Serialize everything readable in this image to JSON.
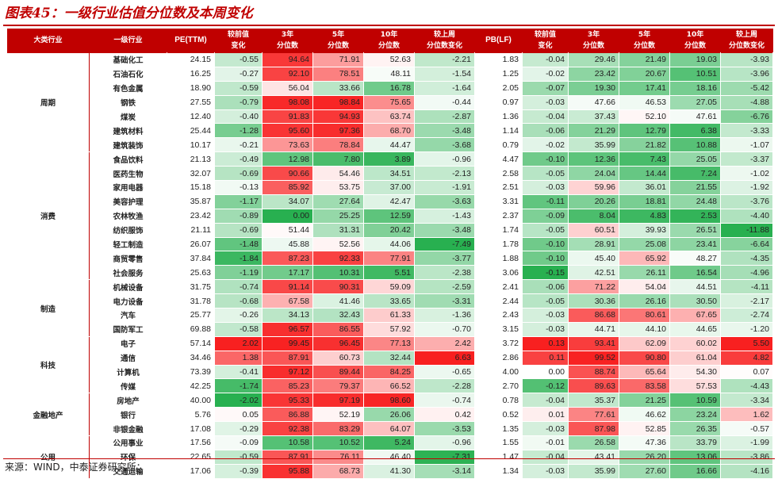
{
  "title": "图表45：一级行业估值分位数及本周变化",
  "source": "来源：WIND，中泰证券研究所；",
  "headers": [
    "大类行业",
    "一级行业",
    "PE(TTM)",
    "较前值\n变化",
    "3年\n分位数",
    "5年\n分位数",
    "10年\n分位数",
    "较上周\n分位数变化",
    "PB(LF)",
    "较前值\n变化",
    "3年\n分位数",
    "5年\n分位数",
    "10年\n分位数",
    "较上周\n分位数变化"
  ],
  "colors": {
    "accent": "#c00000"
  },
  "groups": [
    {
      "name": "周期",
      "rows": [
        {
          "industry": "基础化工",
          "values": [
            "24.15",
            "-0.55",
            "94.64",
            "71.91",
            "52.63",
            "-2.21",
            "1.83",
            "-0.04",
            "29.46",
            "21.49",
            "19.03",
            "-3.93"
          ]
        },
        {
          "industry": "石油石化",
          "values": [
            "16.25",
            "-0.27",
            "92.10",
            "78.51",
            "48.11",
            "-1.54",
            "1.25",
            "-0.02",
            "23.42",
            "20.67",
            "10.51",
            "-3.96"
          ]
        },
        {
          "industry": "有色金属",
          "values": [
            "18.90",
            "-0.59",
            "56.04",
            "33.66",
            "16.78",
            "-1.64",
            "2.05",
            "-0.07",
            "19.30",
            "17.41",
            "18.16",
            "-5.42"
          ]
        },
        {
          "industry": "钢铁",
          "values": [
            "27.55",
            "-0.79",
            "98.08",
            "98.84",
            "75.65",
            "-0.44",
            "0.97",
            "-0.03",
            "47.66",
            "46.53",
            "27.05",
            "-4.88"
          ]
        },
        {
          "industry": "煤炭",
          "values": [
            "12.40",
            "-0.40",
            "91.83",
            "94.93",
            "63.74",
            "-2.87",
            "1.36",
            "-0.04",
            "37.43",
            "52.10",
            "47.61",
            "-6.76"
          ]
        },
        {
          "industry": "建筑材料",
          "values": [
            "25.44",
            "-1.28",
            "95.60",
            "97.36",
            "68.70",
            "-3.48",
            "1.14",
            "-0.06",
            "21.29",
            "12.79",
            "6.38",
            "-3.33"
          ]
        },
        {
          "industry": "建筑装饰",
          "values": [
            "10.17",
            "-0.21",
            "73.63",
            "78.84",
            "44.47",
            "-3.68",
            "0.79",
            "-0.02",
            "35.99",
            "21.82",
            "10.88",
            "-1.07"
          ]
        }
      ]
    },
    {
      "name": "消费",
      "rows": [
        {
          "industry": "食品饮料",
          "values": [
            "21.13",
            "-0.49",
            "12.98",
            "7.80",
            "3.89",
            "-0.96",
            "4.47",
            "-0.10",
            "12.36",
            "7.43",
            "25.05",
            "-3.37"
          ]
        },
        {
          "industry": "医药生物",
          "values": [
            "32.07",
            "-0.69",
            "90.66",
            "54.46",
            "34.51",
            "-2.13",
            "2.58",
            "-0.05",
            "24.04",
            "14.44",
            "7.24",
            "-1.02"
          ]
        },
        {
          "industry": "家用电器",
          "values": [
            "15.18",
            "-0.13",
            "85.92",
            "53.75",
            "37.00",
            "-1.91",
            "2.51",
            "-0.03",
            "59.96",
            "36.01",
            "21.55",
            "-1.92"
          ]
        },
        {
          "industry": "美容护理",
          "values": [
            "35.87",
            "-1.17",
            "34.07",
            "27.64",
            "42.47",
            "-3.63",
            "3.31",
            "-0.11",
            "20.26",
            "18.81",
            "24.48",
            "-3.76"
          ]
        },
        {
          "industry": "农林牧渔",
          "values": [
            "23.42",
            "-0.89",
            "0.00",
            "25.25",
            "12.59",
            "-1.43",
            "2.37",
            "-0.09",
            "8.04",
            "4.83",
            "2.53",
            "-4.40"
          ]
        },
        {
          "industry": "纺织服饰",
          "values": [
            "21.11",
            "-0.69",
            "51.44",
            "31.31",
            "20.42",
            "-3.48",
            "1.74",
            "-0.05",
            "60.51",
            "39.93",
            "26.51",
            "-11.88"
          ]
        },
        {
          "industry": "轻工制造",
          "values": [
            "26.07",
            "-1.48",
            "45.88",
            "52.56",
            "44.06",
            "-7.49",
            "1.78",
            "-0.10",
            "28.91",
            "25.08",
            "23.41",
            "-6.64"
          ]
        },
        {
          "industry": "商贸零售",
          "values": [
            "37.84",
            "-1.84",
            "87.23",
            "92.33",
            "77.91",
            "-3.77",
            "1.88",
            "-0.10",
            "45.40",
            "65.92",
            "48.27",
            "-4.35"
          ]
        },
        {
          "industry": "社会服务",
          "values": [
            "25.63",
            "-1.19",
            "17.17",
            "10.31",
            "5.51",
            "-2.38",
            "3.06",
            "-0.15",
            "42.51",
            "26.11",
            "16.54",
            "-4.96"
          ]
        }
      ]
    },
    {
      "name": "制造",
      "rows": [
        {
          "industry": "机械设备",
          "values": [
            "31.75",
            "-0.74",
            "91.14",
            "90.31",
            "59.09",
            "-2.59",
            "2.41",
            "-0.06",
            "71.22",
            "54.04",
            "44.51",
            "-4.11"
          ]
        },
        {
          "industry": "电力设备",
          "values": [
            "31.78",
            "-0.68",
            "67.58",
            "41.46",
            "33.65",
            "-3.31",
            "2.44",
            "-0.05",
            "30.36",
            "26.16",
            "30.50",
            "-2.17"
          ]
        },
        {
          "industry": "汽车",
          "values": [
            "25.77",
            "-0.26",
            "34.13",
            "32.43",
            "61.33",
            "-1.36",
            "2.43",
            "-0.03",
            "86.68",
            "80.61",
            "67.65",
            "-2.74"
          ]
        },
        {
          "industry": "国防军工",
          "values": [
            "69.88",
            "-0.58",
            "96.57",
            "86.55",
            "57.92",
            "-0.70",
            "3.15",
            "-0.03",
            "44.71",
            "44.10",
            "44.65",
            "-1.20"
          ]
        }
      ]
    },
    {
      "name": "科技",
      "rows": [
        {
          "industry": "电子",
          "values": [
            "57.14",
            "2.02",
            "99.45",
            "96.45",
            "77.13",
            "2.42",
            "3.72",
            "0.13",
            "93.41",
            "62.09",
            "60.02",
            "5.50"
          ]
        },
        {
          "industry": "通信",
          "values": [
            "34.46",
            "1.38",
            "87.91",
            "60.73",
            "32.44",
            "6.63",
            "2.86",
            "0.11",
            "99.52",
            "90.80",
            "61.04",
            "4.82"
          ]
        },
        {
          "industry": "计算机",
          "values": [
            "73.39",
            "-0.41",
            "97.12",
            "89.44",
            "84.25",
            "-0.65",
            "4.00",
            "0.00",
            "88.74",
            "65.64",
            "54.30",
            "0.07"
          ]
        },
        {
          "industry": "传媒",
          "values": [
            "42.25",
            "-1.74",
            "85.23",
            "79.37",
            "66.52",
            "-2.28",
            "2.70",
            "-0.12",
            "89.63",
            "83.58",
            "57.53",
            "-4.43"
          ]
        }
      ]
    },
    {
      "name": "金融地产",
      "rows": [
        {
          "industry": "房地产",
          "values": [
            "40.00",
            "-2.02",
            "95.33",
            "97.19",
            "98.60",
            "-0.74",
            "0.78",
            "-0.04",
            "35.37",
            "21.25",
            "10.59",
            "-3.34"
          ]
        },
        {
          "industry": "银行",
          "values": [
            "5.76",
            "0.05",
            "86.88",
            "52.19",
            "26.06",
            "0.42",
            "0.52",
            "0.01",
            "77.61",
            "46.62",
            "23.24",
            "1.62"
          ]
        },
        {
          "industry": "非银金融",
          "values": [
            "17.08",
            "-0.29",
            "92.38",
            "83.29",
            "64.07",
            "-3.53",
            "1.35",
            "-0.03",
            "87.98",
            "52.85",
            "26.35",
            "-0.57"
          ]
        }
      ]
    },
    {
      "name": "公用",
      "rows": [
        {
          "industry": "公用事业",
          "values": [
            "17.56",
            "-0.09",
            "10.58",
            "10.52",
            "5.24",
            "-0.96",
            "1.55",
            "-0.01",
            "26.58",
            "47.36",
            "33.79",
            "-1.99"
          ]
        },
        {
          "industry": "环保",
          "values": [
            "22.65",
            "-0.59",
            "87.91",
            "76.11",
            "46.40",
            "-7.31",
            "1.47",
            "-0.04",
            "43.41",
            "26.20",
            "13.06",
            "-3.86"
          ]
        },
        {
          "industry": "交通运输",
          "values": [
            "17.06",
            "-0.39",
            "95.88",
            "68.73",
            "41.30",
            "-3.14",
            "1.34",
            "-0.03",
            "35.99",
            "27.60",
            "16.66",
            "-4.16"
          ]
        }
      ]
    }
  ]
}
